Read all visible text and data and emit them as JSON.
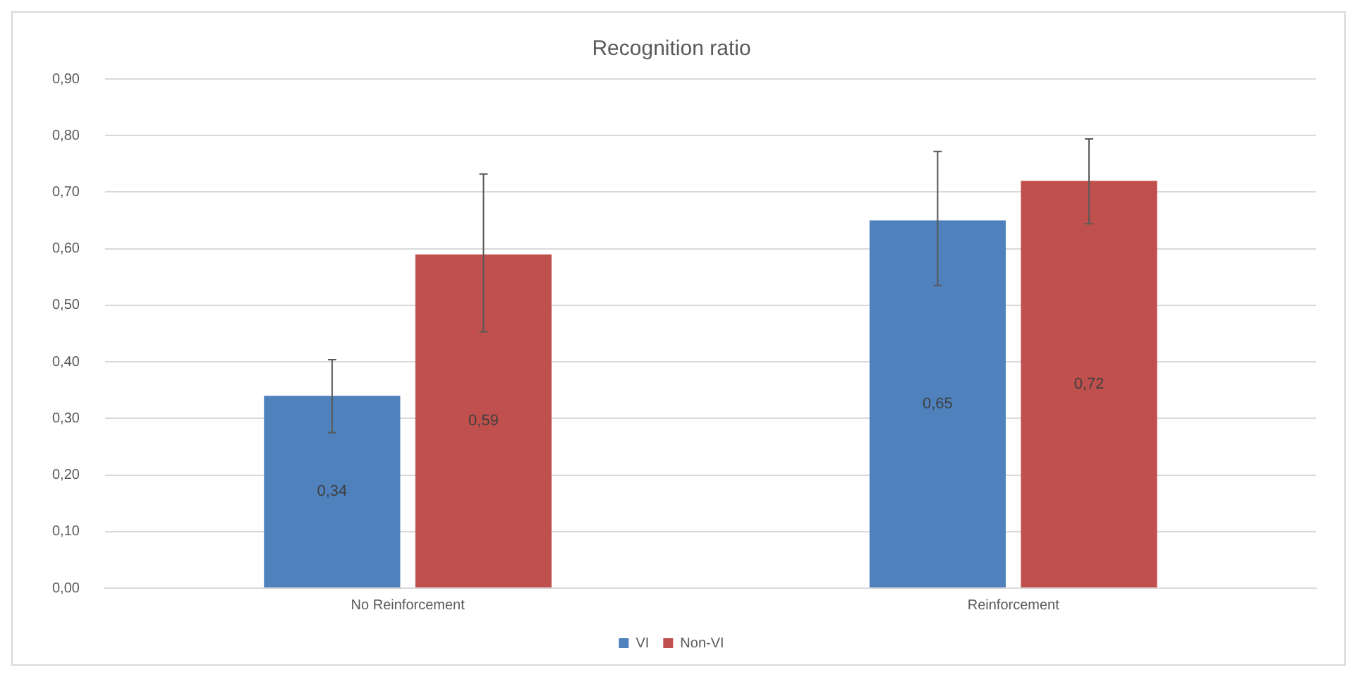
{
  "chart_data": {
    "type": "bar",
    "title": "Recognition ratio",
    "categories": [
      "No Reinforcement",
      "Reinforcement"
    ],
    "series": [
      {
        "name": "VI",
        "color": "#4f81bd",
        "values": [
          0.34,
          0.65
        ],
        "errors": [
          [
            0.275,
            0.404
          ],
          [
            0.535,
            0.772
          ]
        ],
        "value_labels": [
          "0,34",
          "0,65"
        ]
      },
      {
        "name": "Non-VI",
        "color": "#c0504d",
        "values": [
          0.59,
          0.72
        ],
        "errors": [
          [
            0.453,
            0.732
          ],
          [
            0.644,
            0.794
          ]
        ],
        "value_labels": [
          "0,59",
          "0,72"
        ]
      }
    ],
    "ylim": [
      0,
      0.9
    ],
    "yticks": [
      {
        "value": 0,
        "label": "0,00"
      },
      {
        "value": 0.1,
        "label": "0,10"
      },
      {
        "value": 0.2,
        "label": "0,20"
      },
      {
        "value": 0.3,
        "label": "0,30"
      },
      {
        "value": 0.4,
        "label": "0,40"
      },
      {
        "value": 0.5,
        "label": "0,50"
      },
      {
        "value": 0.6,
        "label": "0,60"
      },
      {
        "value": 0.7,
        "label": "0,70"
      },
      {
        "value": 0.8,
        "label": "0,80"
      },
      {
        "value": 0.9,
        "label": "0,90"
      }
    ],
    "grid": "y",
    "legend": "bottom"
  }
}
